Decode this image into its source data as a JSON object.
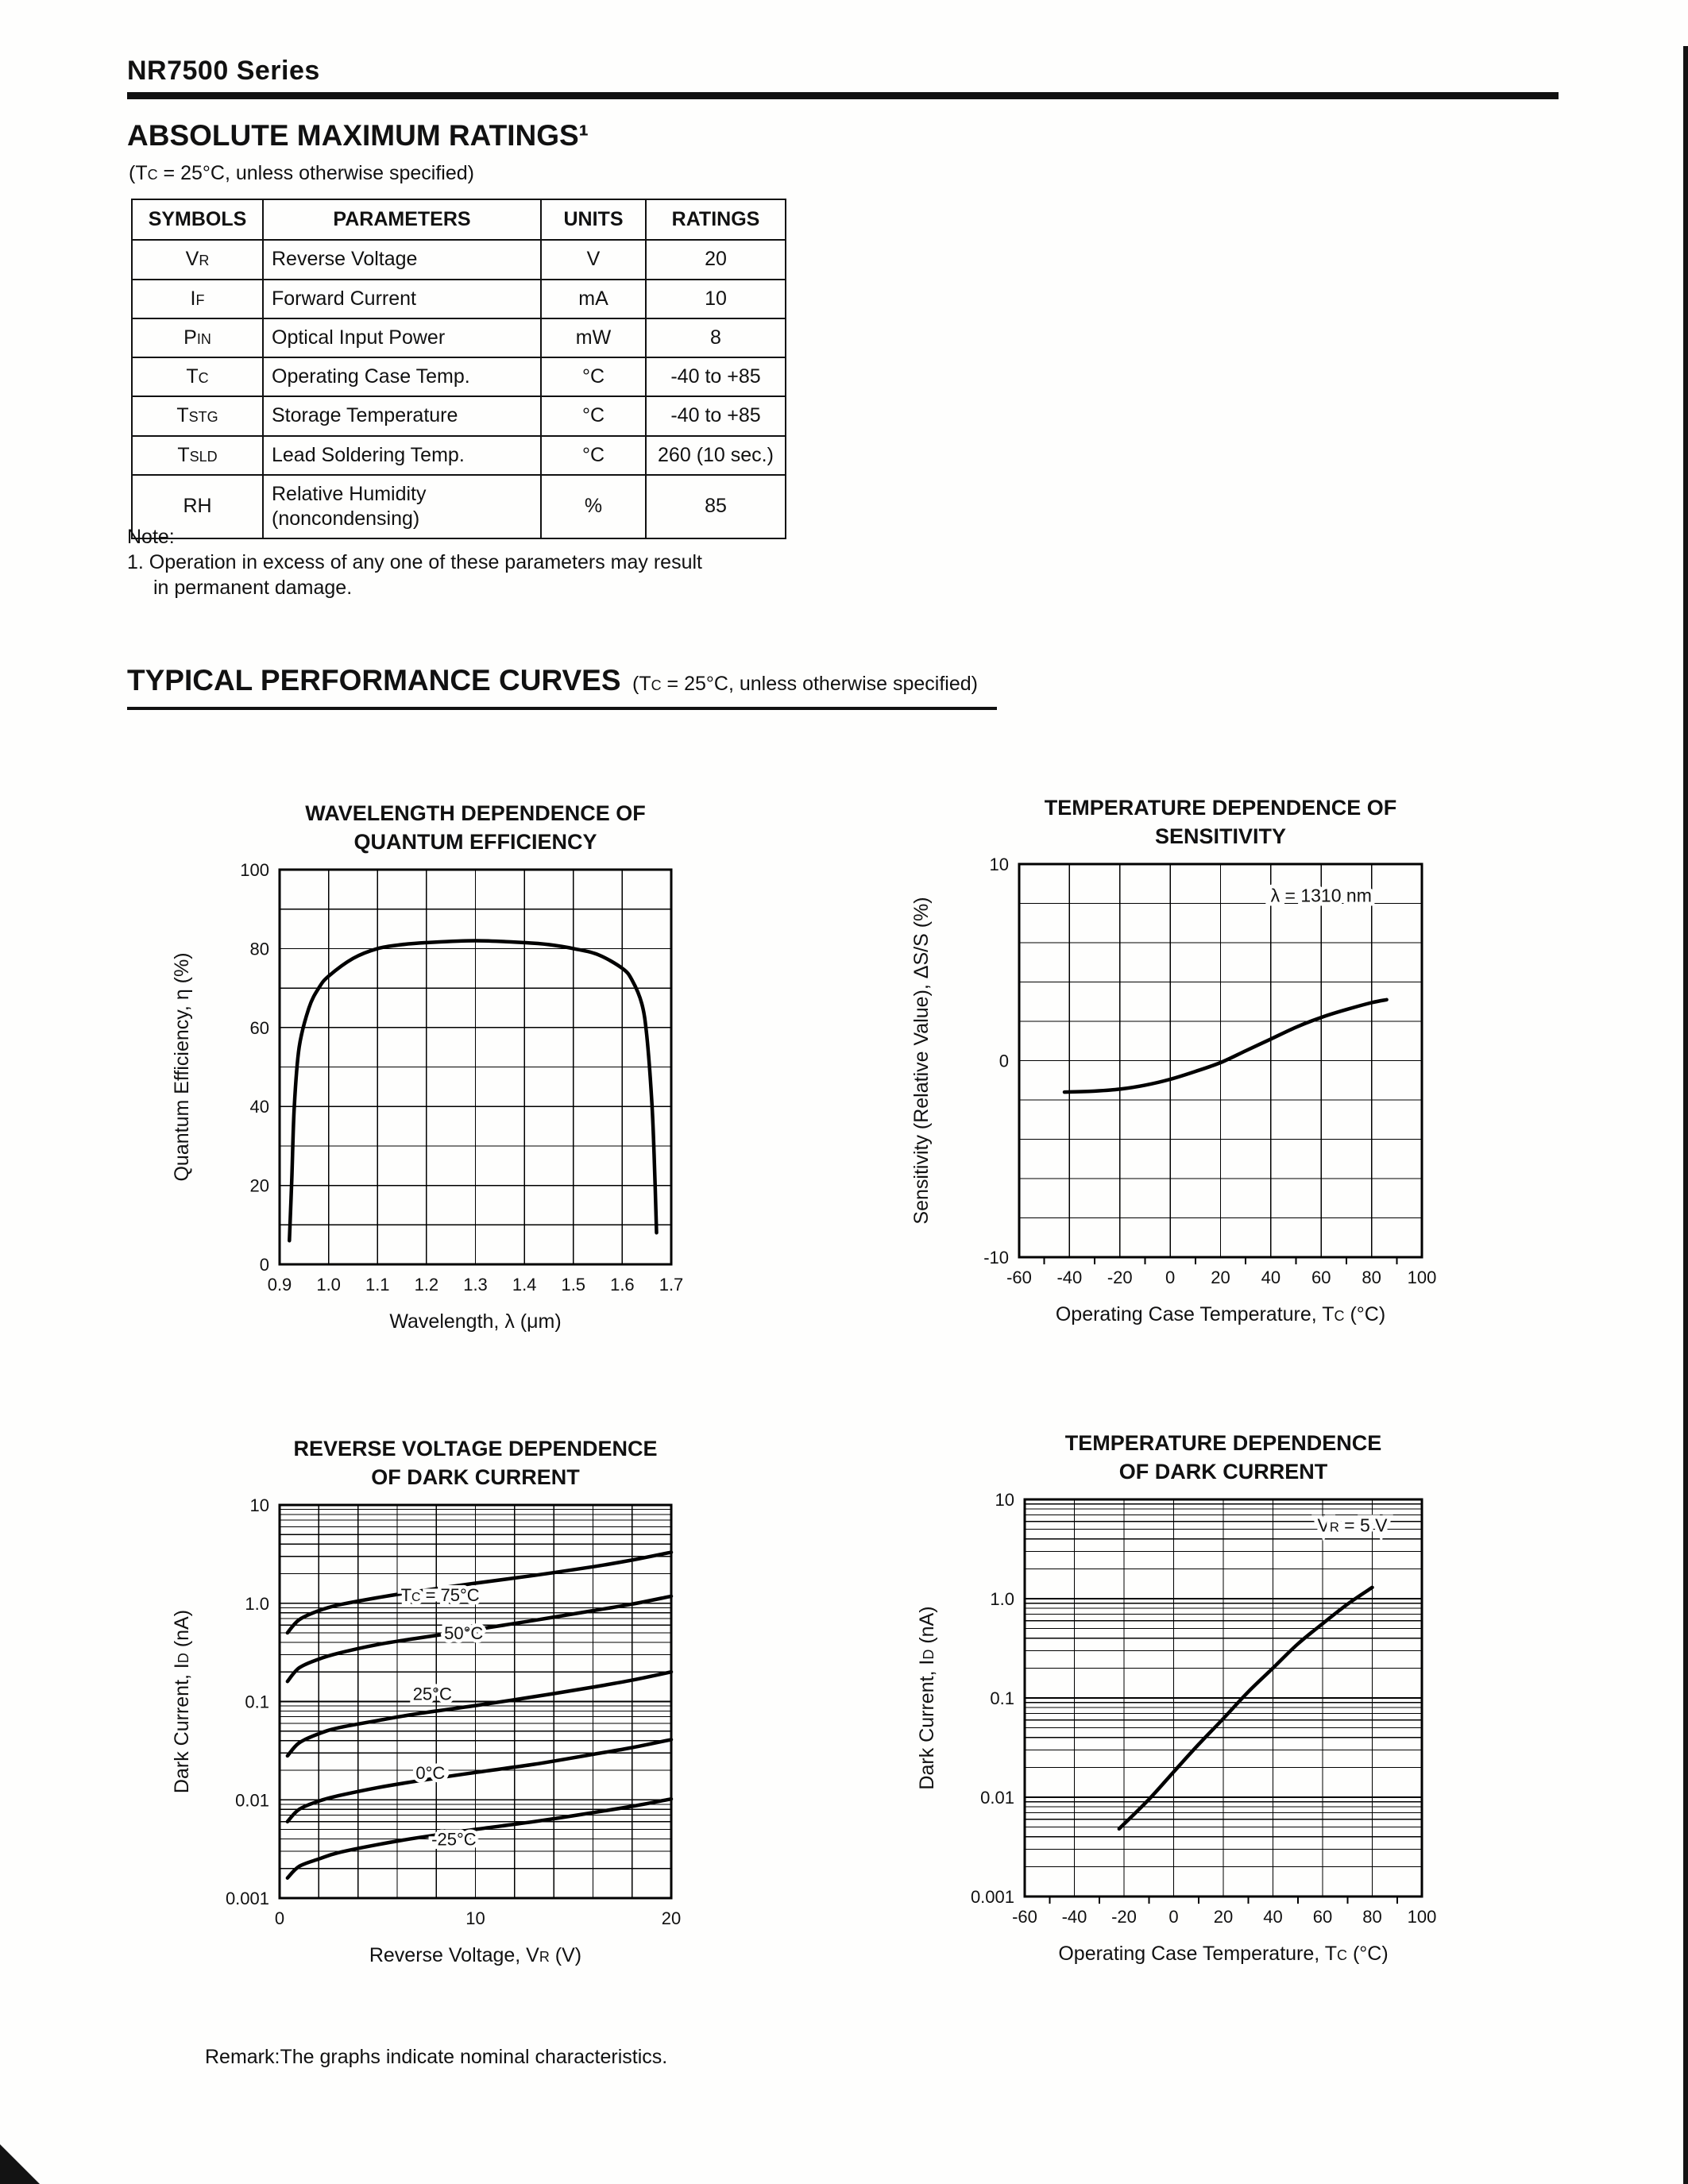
{
  "page": {
    "series_title": "NR7500 Series",
    "remark": "Remark:The graphs indicate nominal characteristics."
  },
  "ratings": {
    "heading": "ABSOLUTE MAXIMUM RATINGS¹",
    "condition": "(T{C} = 25°C, unless otherwise specified)",
    "table": {
      "headers": [
        "SYMBOLS",
        "PARAMETERS",
        "UNITS",
        "RATINGS"
      ],
      "rows": [
        {
          "symbol": "V{R}",
          "parameter": "Reverse Voltage",
          "unit": "V",
          "rating": "20"
        },
        {
          "symbol": "I{F}",
          "parameter": "Forward Current",
          "unit": "mA",
          "rating": "10"
        },
        {
          "symbol": "P{IN}",
          "parameter": "Optical Input Power",
          "unit": "mW",
          "rating": "8"
        },
        {
          "symbol": "T{C}",
          "parameter": "Operating Case Temp.",
          "unit": "°C",
          "rating": "-40 to +85"
        },
        {
          "symbol": "T{STG}",
          "parameter": "Storage Temperature",
          "unit": "°C",
          "rating": "-40 to +85"
        },
        {
          "symbol": "T{SLD}",
          "parameter": "Lead Soldering Temp.",
          "unit": "°C",
          "rating": "260 (10 sec.)"
        },
        {
          "symbol": "RH",
          "parameter": "Relative Humidity\n(noncondensing)",
          "unit": "%",
          "rating": "85"
        }
      ]
    },
    "note_label": "Note:",
    "note_lines": [
      "1. Operation in excess of any one of these parameters may result",
      "in permanent damage."
    ]
  },
  "curves_section": {
    "heading": "TYPICAL PERFORMANCE CURVES",
    "condition": "(T{C} = 25°C, unless otherwise specified)"
  },
  "chart_data": [
    {
      "id": "wavelength-quantum-efficiency",
      "type": "line",
      "grid": true,
      "title_lines": [
        "WAVELENGTH DEPENDENCE OF",
        "QUANTUM EFFICIENCY"
      ],
      "xlabel": "Wavelength, λ (μm)",
      "ylabel": "Quantum Efficiency, η (%)",
      "x": {
        "min": 0.9,
        "max": 1.7,
        "grid_step": 0.1,
        "ticks": [
          0.9,
          1.0,
          1.1,
          1.2,
          1.3,
          1.4,
          1.5,
          1.6,
          1.7
        ],
        "tick_labels": [
          "0.9",
          "1.0",
          "1.1",
          "1.2",
          "1.3",
          "1.4",
          "1.5",
          "1.6",
          "1.7"
        ]
      },
      "y": {
        "scale": "linear",
        "min": 0,
        "max": 100,
        "grid_step": 10,
        "ticks": [
          100,
          80,
          60,
          40,
          20,
          0
        ],
        "tick_labels": [
          "100",
          "80",
          "60",
          "40",
          "20",
          "0"
        ]
      },
      "series": [
        {
          "name": "quantum-efficiency",
          "points": [
            [
              0.92,
              6
            ],
            [
              0.925,
              22
            ],
            [
              0.93,
              40
            ],
            [
              0.94,
              55
            ],
            [
              0.96,
              65
            ],
            [
              0.98,
              70
            ],
            [
              1.0,
              73
            ],
            [
              1.05,
              77.5
            ],
            [
              1.1,
              80
            ],
            [
              1.15,
              81
            ],
            [
              1.2,
              81.5
            ],
            [
              1.3,
              82
            ],
            [
              1.4,
              81.5
            ],
            [
              1.45,
              81
            ],
            [
              1.5,
              80
            ],
            [
              1.55,
              78.5
            ],
            [
              1.6,
              75
            ],
            [
              1.62,
              72
            ],
            [
              1.64,
              66
            ],
            [
              1.65,
              58
            ],
            [
              1.66,
              42
            ],
            [
              1.665,
              28
            ],
            [
              1.67,
              8
            ]
          ]
        }
      ]
    },
    {
      "id": "temperature-sensitivity",
      "type": "line",
      "grid": true,
      "title_lines": [
        "TEMPERATURE DEPENDENCE OF",
        "SENSITIVITY"
      ],
      "xlabel": "Operating Case Temperature, T{C} (°C)",
      "ylabel": "Sensitivity (Relative Value), ΔS/S (%)",
      "x": {
        "min": -60,
        "max": 100,
        "grid_step": 20,
        "minor_step": 10,
        "ticks": [
          -60,
          -40,
          -20,
          0,
          20,
          40,
          60,
          80,
          100
        ],
        "tick_labels": [
          "-60",
          "-40",
          "-20",
          "0",
          "20",
          "40",
          "60",
          "80",
          "100"
        ]
      },
      "y": {
        "scale": "linear",
        "min": -10,
        "max": 10,
        "grid_step": 2,
        "ticks": [
          10,
          0,
          -10
        ],
        "tick_labels": [
          "10",
          "0",
          "-10"
        ]
      },
      "annotation": {
        "text": "λ = 1310 nm",
        "x": 60,
        "y": 8.4
      },
      "series": [
        {
          "name": "sensitivity",
          "points": [
            [
              -42,
              -1.6
            ],
            [
              -30,
              -1.55
            ],
            [
              -20,
              -1.45
            ],
            [
              -10,
              -1.25
            ],
            [
              0,
              -0.95
            ],
            [
              10,
              -0.55
            ],
            [
              20,
              -0.1
            ],
            [
              30,
              0.5
            ],
            [
              40,
              1.1
            ],
            [
              50,
              1.7
            ],
            [
              60,
              2.2
            ],
            [
              70,
              2.6
            ],
            [
              80,
              2.95
            ],
            [
              86,
              3.1
            ]
          ]
        }
      ]
    },
    {
      "id": "reverse-voltage-dark-current",
      "type": "line",
      "grid": true,
      "title_lines": [
        "REVERSE VOLTAGE DEPENDENCE",
        "OF DARK CURRENT"
      ],
      "xlabel": "Reverse Voltage, V{R} (V)",
      "ylabel": "Dark Current, I{D} (nA)",
      "x": {
        "min": 0,
        "max": 20,
        "grid_step": 2,
        "ticks": [
          0,
          10,
          20
        ],
        "tick_labels": [
          "0",
          "10",
          "20"
        ]
      },
      "y": {
        "scale": "log",
        "min": 0.001,
        "max": 10,
        "ticks": [
          10,
          1,
          0.1,
          0.01,
          0.001
        ],
        "tick_labels": [
          "10",
          "1.0",
          "0.1",
          "0.01",
          "0.001"
        ]
      },
      "series": [
        {
          "name": "75C",
          "label": {
            "text": "T{C} = 75°C",
            "x": 8.2,
            "y": 1.22
          },
          "points": [
            [
              0.4,
              0.5
            ],
            [
              1,
              0.68
            ],
            [
              2,
              0.84
            ],
            [
              3,
              0.96
            ],
            [
              5,
              1.14
            ],
            [
              7,
              1.32
            ],
            [
              10,
              1.6
            ],
            [
              13,
              1.92
            ],
            [
              16,
              2.35
            ],
            [
              18,
              2.75
            ],
            [
              20,
              3.3
            ]
          ]
        },
        {
          "name": "50C",
          "label": {
            "text": "50°C",
            "x": 9.4,
            "y": 0.5
          },
          "points": [
            [
              0.4,
              0.16
            ],
            [
              1,
              0.22
            ],
            [
              2,
              0.27
            ],
            [
              3,
              0.31
            ],
            [
              5,
              0.38
            ],
            [
              7,
              0.44
            ],
            [
              10,
              0.54
            ],
            [
              13,
              0.67
            ],
            [
              16,
              0.84
            ],
            [
              18,
              0.98
            ],
            [
              20,
              1.18
            ]
          ]
        },
        {
          "name": "25C",
          "label": {
            "text": "25°C",
            "x": 7.8,
            "y": 0.12
          },
          "points": [
            [
              0.4,
              0.028
            ],
            [
              1,
              0.038
            ],
            [
              2,
              0.047
            ],
            [
              3,
              0.054
            ],
            [
              5,
              0.064
            ],
            [
              7,
              0.075
            ],
            [
              10,
              0.091
            ],
            [
              13,
              0.112
            ],
            [
              16,
              0.14
            ],
            [
              18,
              0.165
            ],
            [
              20,
              0.2
            ]
          ]
        },
        {
          "name": "0C",
          "label": {
            "text": "0°C",
            "x": 7.7,
            "y": 0.019
          },
          "points": [
            [
              0.4,
              0.006
            ],
            [
              1,
              0.008
            ],
            [
              2,
              0.0097
            ],
            [
              3,
              0.011
            ],
            [
              5,
              0.0133
            ],
            [
              7,
              0.0155
            ],
            [
              10,
              0.019
            ],
            [
              13,
              0.023
            ],
            [
              16,
              0.029
            ],
            [
              18,
              0.034
            ],
            [
              20,
              0.041
            ]
          ]
        },
        {
          "name": "-25C",
          "label": {
            "text": "-25°C",
            "x": 8.9,
            "y": 0.004
          },
          "points": [
            [
              0.4,
              0.0016
            ],
            [
              1,
              0.0021
            ],
            [
              2,
              0.0025
            ],
            [
              3,
              0.0029
            ],
            [
              5,
              0.0035
            ],
            [
              7,
              0.0041
            ],
            [
              10,
              0.005
            ],
            [
              13,
              0.006
            ],
            [
              16,
              0.0074
            ],
            [
              18,
              0.0086
            ],
            [
              20,
              0.0102
            ]
          ]
        }
      ]
    },
    {
      "id": "temperature-dark-current",
      "type": "line",
      "grid": true,
      "title_lines": [
        "TEMPERATURE DEPENDENCE",
        "OF DARK CURRENT"
      ],
      "xlabel": "Operating Case Temperature, T{C} (°C)",
      "ylabel": "Dark Current, I{D} (nA)",
      "x": {
        "min": -60,
        "max": 100,
        "grid_step": 20,
        "minor_step": 10,
        "ticks": [
          -60,
          -40,
          -20,
          0,
          20,
          40,
          60,
          80,
          100
        ],
        "tick_labels": [
          "-60",
          "-40",
          "-20",
          "0",
          "20",
          "40",
          "60",
          "80",
          "100"
        ]
      },
      "y": {
        "scale": "log",
        "min": 0.001,
        "max": 10,
        "ticks": [
          10,
          1,
          0.1,
          0.01,
          0.001
        ],
        "tick_labels": [
          "10",
          "1.0",
          "0.1",
          "0.01",
          "0.001"
        ]
      },
      "annotation": {
        "text": "V{R} = 5 V",
        "x": 72,
        "y": 5.5
      },
      "series": [
        {
          "name": "dark-current",
          "points": [
            [
              -22,
              0.0048
            ],
            [
              -10,
              0.0095
            ],
            [
              0,
              0.018
            ],
            [
              10,
              0.034
            ],
            [
              20,
              0.062
            ],
            [
              30,
              0.115
            ],
            [
              40,
              0.2
            ],
            [
              50,
              0.35
            ],
            [
              60,
              0.56
            ],
            [
              70,
              0.88
            ],
            [
              80,
              1.3
            ]
          ]
        }
      ]
    }
  ]
}
